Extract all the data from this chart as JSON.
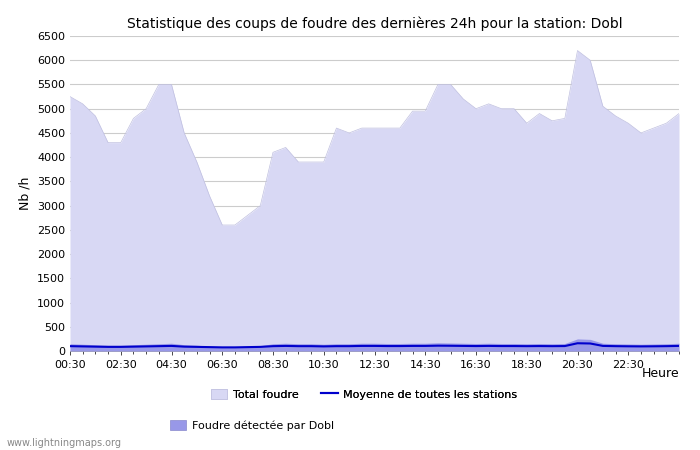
{
  "title": "Statistique des coups de foudre des dernières 24h pour la station: Dobl",
  "ylabel": "Nb /h",
  "xlabel": "Heure",
  "xlim_labels": [
    "00:30",
    "02:30",
    "04:30",
    "06:30",
    "08:30",
    "10:30",
    "12:30",
    "14:30",
    "16:30",
    "18:30",
    "20:30",
    "22:30"
  ],
  "ylim": [
    0,
    6500
  ],
  "yticks": [
    0,
    500,
    1000,
    1500,
    2000,
    2500,
    3000,
    3500,
    4000,
    4500,
    5000,
    5500,
    6000,
    6500
  ],
  "background_color": "#ffffff",
  "plot_bg_color": "#ffffff",
  "grid_color": "#cccccc",
  "total_foudre_fill_color": "#d8d8f4",
  "total_foudre_edge_color": "#c0c0e0",
  "dobl_fill_color": "#9898e8",
  "dobl_edge_color": "#8888cc",
  "moyenne_line_color": "#0000cc",
  "watermark": "www.lightningmaps.org",
  "legend_labels": [
    "Total foudre",
    "Moyenne de toutes les stations",
    "Foudre détectée par Dobl"
  ],
  "x_values": [
    0,
    1,
    2,
    3,
    4,
    5,
    6,
    7,
    8,
    9,
    10,
    11,
    12,
    13,
    14,
    15,
    16,
    17,
    18,
    19,
    20,
    21,
    22,
    23,
    24,
    25,
    26,
    27,
    28,
    29,
    30,
    31,
    32,
    33,
    34,
    35,
    36,
    37,
    38,
    39,
    40,
    41,
    42,
    43,
    44,
    45,
    46,
    47,
    48
  ],
  "total_foudre": [
    5250,
    5100,
    4850,
    4300,
    4300,
    4800,
    5000,
    5500,
    5500,
    4500,
    3900,
    3200,
    2600,
    2600,
    2800,
    3000,
    4100,
    4200,
    3900,
    3900,
    3900,
    4600,
    4500,
    4600,
    4600,
    4600,
    4600,
    4950,
    4950,
    5500,
    5500,
    5200,
    5000,
    5100,
    5000,
    5000,
    4700,
    4900,
    4750,
    4800,
    6200,
    6000,
    5050,
    4850,
    4700,
    4500,
    4600,
    4700,
    4900
  ],
  "dobl": [
    150,
    140,
    130,
    120,
    120,
    130,
    140,
    150,
    160,
    130,
    120,
    100,
    90,
    90,
    100,
    110,
    150,
    160,
    150,
    150,
    140,
    150,
    150,
    160,
    160,
    155,
    155,
    160,
    160,
    170,
    165,
    160,
    155,
    160,
    155,
    155,
    150,
    155,
    150,
    155,
    250,
    240,
    160,
    150,
    145,
    140,
    145,
    150,
    160
  ],
  "moyenne": [
    100,
    95,
    90,
    85,
    85,
    90,
    95,
    100,
    105,
    90,
    85,
    80,
    75,
    75,
    80,
    85,
    100,
    105,
    100,
    100,
    95,
    100,
    100,
    105,
    105,
    102,
    102,
    105,
    105,
    110,
    108,
    105,
    102,
    105,
    102,
    102,
    100,
    102,
    100,
    102,
    160,
    155,
    105,
    100,
    97,
    95,
    97,
    100,
    105
  ],
  "figsize": [
    7.0,
    4.5
  ],
  "dpi": 100
}
